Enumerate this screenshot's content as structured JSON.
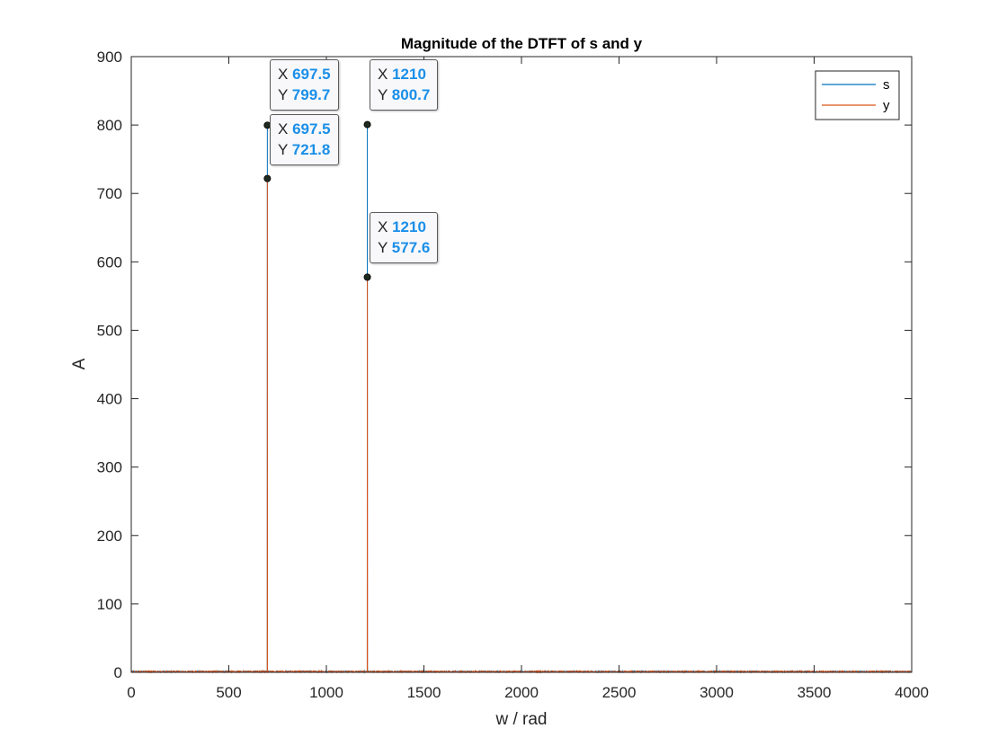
{
  "chart_data": {
    "type": "line",
    "title": "Magnitude of the DTFT of s and y",
    "xlabel": "w / rad",
    "ylabel": "A",
    "xlim": [
      0,
      4000
    ],
    "ylim": [
      0,
      900
    ],
    "xticks": [
      "0",
      "500",
      "1000",
      "1500",
      "2000",
      "2500",
      "3000",
      "3500",
      "4000"
    ],
    "yticks": [
      "0",
      "100",
      "200",
      "300",
      "400",
      "500",
      "600",
      "700",
      "800",
      "900"
    ],
    "grid": false,
    "legend_position": "top-right",
    "series": [
      {
        "name": "s",
        "color": "#0072BD",
        "noise_level": 2,
        "peaks": [
          {
            "x": 697.5,
            "y": 799.7
          },
          {
            "x": 1210,
            "y": 800.7
          }
        ]
      },
      {
        "name": "y",
        "color": "#D95319",
        "noise_level": 2,
        "peaks": [
          {
            "x": 697.5,
            "y": 721.8
          },
          {
            "x": 1210,
            "y": 577.6
          }
        ]
      }
    ],
    "datatips": [
      {
        "x": "697.5",
        "y": "799.7"
      },
      {
        "x": "697.5",
        "y": "721.8"
      },
      {
        "x": "1210",
        "y": "800.7"
      },
      {
        "x": "1210",
        "y": "577.6"
      }
    ],
    "datatip_labels": {
      "x": "X",
      "y": "Y"
    }
  }
}
